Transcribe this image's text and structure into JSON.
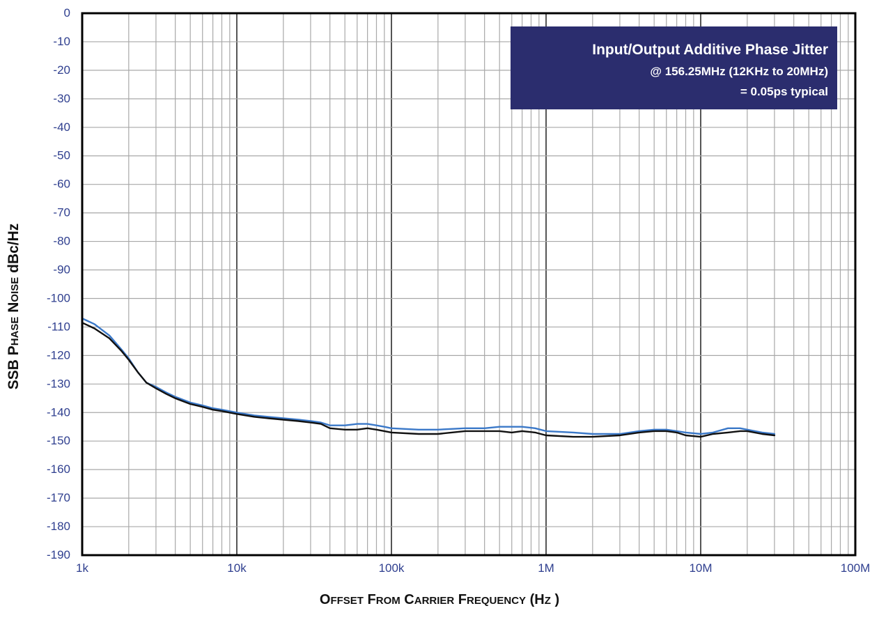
{
  "chart_data": {
    "type": "line",
    "title": "",
    "xlabel": {
      "parts": [
        {
          "big": "O",
          "small": "FFSET"
        },
        {
          "big": "F",
          "small": "ROM"
        },
        {
          "big": "C",
          "small": "ARRIER"
        },
        {
          "big": "F",
          "small": "REQUENCY"
        },
        {
          "big": "(H",
          "small": "Z"
        },
        {
          "big": ")",
          "small": ""
        }
      ],
      "text": "Offset From Carrier Frequency (Hz)"
    },
    "ylabel": {
      "parts": [
        {
          "big": "SSB",
          "small": ""
        },
        {
          "big": "P",
          "small": "HASE"
        },
        {
          "big": "N",
          "small": "OISE"
        },
        {
          "big": "dBc/Hz",
          "small": ""
        }
      ],
      "text": "SSB Phase Noise dBc/Hz"
    },
    "x_scale": "log",
    "xlim": [
      1000,
      100000000
    ],
    "ylim": [
      -190,
      0
    ],
    "x_ticks": [
      {
        "value": 1000,
        "label": "1k"
      },
      {
        "value": 10000,
        "label": "10k"
      },
      {
        "value": 100000,
        "label": "100k"
      },
      {
        "value": 1000000,
        "label": "1M"
      },
      {
        "value": 10000000,
        "label": "10M"
      },
      {
        "value": 100000000,
        "label": "100M"
      }
    ],
    "y_ticks": [
      {
        "value": 0,
        "label": "0"
      },
      {
        "value": -10,
        "label": "-10"
      },
      {
        "value": -20,
        "label": "-20"
      },
      {
        "value": -30,
        "label": "-30"
      },
      {
        "value": -40,
        "label": "-40"
      },
      {
        "value": -50,
        "label": "-50"
      },
      {
        "value": -60,
        "label": "-60"
      },
      {
        "value": -70,
        "label": "-70"
      },
      {
        "value": -80,
        "label": "-80"
      },
      {
        "value": -90,
        "label": "-90"
      },
      {
        "value": -100,
        "label": "-100"
      },
      {
        "value": -110,
        "label": "-110"
      },
      {
        "value": -120,
        "label": "-120"
      },
      {
        "value": -130,
        "label": "-130"
      },
      {
        "value": -140,
        "label": "-140"
      },
      {
        "value": -150,
        "label": "-150"
      },
      {
        "value": -160,
        "label": "-160"
      },
      {
        "value": -170,
        "label": "-170"
      },
      {
        "value": -180,
        "label": "-180"
      },
      {
        "value": -190,
        "label": "-190"
      }
    ],
    "grid": true,
    "annotation": {
      "lines": [
        "Input/Output Additive Phase Jitter",
        "@ 156.25MHz (12KHz to 20MHz)",
        "= 0.05ps typical"
      ],
      "placement": "top-right",
      "background": "#2b2d6e",
      "text_color": "#ffffff"
    },
    "series": [
      {
        "color": "#3a78c8",
        "points": [
          [
            1000,
            -107
          ],
          [
            1200,
            -109
          ],
          [
            1500,
            -113
          ],
          [
            1800,
            -118
          ],
          [
            2000,
            -121
          ],
          [
            2300,
            -126
          ],
          [
            2600,
            -129.5
          ],
          [
            3000,
            -131
          ],
          [
            3500,
            -133
          ],
          [
            4000,
            -134.5
          ],
          [
            5000,
            -136.5
          ],
          [
            6000,
            -137.5
          ],
          [
            7000,
            -138.5
          ],
          [
            8000,
            -139
          ],
          [
            10000,
            -140
          ],
          [
            13000,
            -141
          ],
          [
            16000,
            -141.5
          ],
          [
            20000,
            -142
          ],
          [
            25000,
            -142.5
          ],
          [
            30000,
            -143
          ],
          [
            35000,
            -143.5
          ],
          [
            40000,
            -144.5
          ],
          [
            50000,
            -144.5
          ],
          [
            60000,
            -144
          ],
          [
            70000,
            -144
          ],
          [
            80000,
            -144.5
          ],
          [
            90000,
            -145
          ],
          [
            100000,
            -145.5
          ],
          [
            150000,
            -146
          ],
          [
            200000,
            -146
          ],
          [
            300000,
            -145.5
          ],
          [
            400000,
            -145.5
          ],
          [
            500000,
            -145
          ],
          [
            600000,
            -145
          ],
          [
            700000,
            -145
          ],
          [
            850000,
            -145.5
          ],
          [
            1000000,
            -146.5
          ],
          [
            1500000,
            -147
          ],
          [
            2000000,
            -147.5
          ],
          [
            3000000,
            -147.5
          ],
          [
            4000000,
            -146.5
          ],
          [
            5000000,
            -146
          ],
          [
            6000000,
            -146
          ],
          [
            7000000,
            -146.5
          ],
          [
            8000000,
            -147
          ],
          [
            10000000,
            -147.5
          ],
          [
            12000000,
            -147
          ],
          [
            15000000,
            -145.5
          ],
          [
            18000000,
            -145.5
          ],
          [
            20000000,
            -146
          ],
          [
            25000000,
            -147
          ],
          [
            30000000,
            -147.5
          ]
        ]
      },
      {
        "color": "#111111",
        "points": [
          [
            1000,
            -108.5
          ],
          [
            1200,
            -110.5
          ],
          [
            1500,
            -114
          ],
          [
            1800,
            -118.5
          ],
          [
            2000,
            -121.5
          ],
          [
            2300,
            -126
          ],
          [
            2600,
            -129.5
          ],
          [
            3000,
            -131.5
          ],
          [
            3500,
            -133.5
          ],
          [
            4000,
            -135
          ],
          [
            5000,
            -137
          ],
          [
            6000,
            -138
          ],
          [
            7000,
            -139
          ],
          [
            8000,
            -139.5
          ],
          [
            10000,
            -140.5
          ],
          [
            13000,
            -141.5
          ],
          [
            16000,
            -142
          ],
          [
            20000,
            -142.5
          ],
          [
            25000,
            -143
          ],
          [
            30000,
            -143.5
          ],
          [
            35000,
            -144
          ],
          [
            40000,
            -145.5
          ],
          [
            50000,
            -146
          ],
          [
            60000,
            -146
          ],
          [
            70000,
            -145.5
          ],
          [
            80000,
            -146
          ],
          [
            90000,
            -146.5
          ],
          [
            100000,
            -147
          ],
          [
            150000,
            -147.5
          ],
          [
            200000,
            -147.5
          ],
          [
            300000,
            -146.5
          ],
          [
            400000,
            -146.5
          ],
          [
            500000,
            -146.5
          ],
          [
            600000,
            -147
          ],
          [
            700000,
            -146.5
          ],
          [
            850000,
            -147
          ],
          [
            1000000,
            -148
          ],
          [
            1500000,
            -148.5
          ],
          [
            2000000,
            -148.5
          ],
          [
            3000000,
            -148
          ],
          [
            4000000,
            -147
          ],
          [
            5000000,
            -146.5
          ],
          [
            6000000,
            -146.5
          ],
          [
            7000000,
            -147
          ],
          [
            8000000,
            -148
          ],
          [
            10000000,
            -148.5
          ],
          [
            12000000,
            -147.5
          ],
          [
            15000000,
            -147
          ],
          [
            18000000,
            -146.5
          ],
          [
            20000000,
            -146.5
          ],
          [
            25000000,
            -147.5
          ],
          [
            30000000,
            -148
          ]
        ]
      }
    ]
  }
}
